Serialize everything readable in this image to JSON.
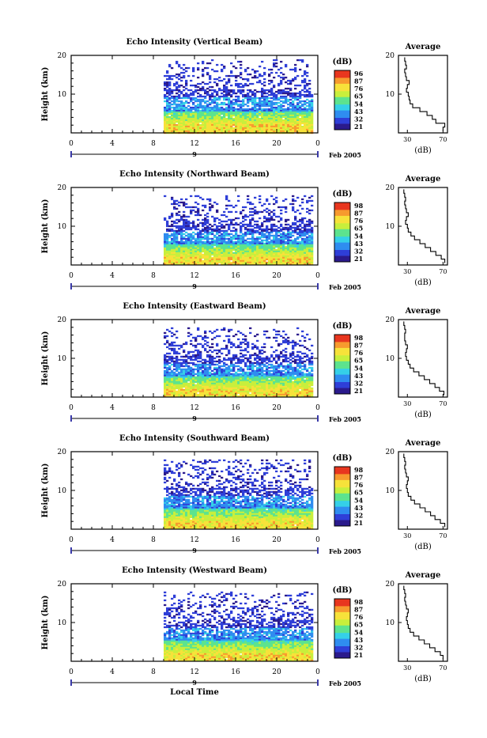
{
  "chart_data": [
    {
      "type": "heatmap",
      "title": "Echo Intensity (Vertical Beam)",
      "ylabel": "Height (km)",
      "ylim": [
        0,
        20
      ],
      "yticks": [
        "20",
        "10"
      ],
      "xlim": [
        0,
        24
      ],
      "xticks": [
        "0",
        "4",
        "8",
        "12",
        "16",
        "20",
        "0"
      ],
      "date_label": "9",
      "date_suffix": "Feb 2005",
      "data_start_hour": 9,
      "data_top_km": 19,
      "colorbar": {
        "label": "(dB)",
        "ticks": [
          "96",
          "87",
          "76",
          "65",
          "54",
          "43",
          "32",
          "21"
        ]
      },
      "average_profile": {
        "title": "Average",
        "xlabel": "(dB)",
        "xticks": [
          "30",
          "70"
        ],
        "heights_km": [
          1,
          2,
          3,
          4,
          5,
          6,
          7,
          8,
          9,
          10,
          11,
          12,
          13,
          14,
          15,
          16,
          17,
          18,
          19
        ],
        "values_db": [
          70,
          72,
          62,
          58,
          52,
          44,
          36,
          33,
          32,
          31,
          29,
          30,
          32,
          29,
          28,
          27,
          29,
          28,
          27
        ]
      }
    },
    {
      "type": "heatmap",
      "title": "Echo Intensity (Northward Beam)",
      "ylabel": "Height (km)",
      "ylim": [
        0,
        20
      ],
      "yticks": [
        "20",
        "10"
      ],
      "xlim": [
        0,
        24
      ],
      "xticks": [
        "0",
        "4",
        "8",
        "12",
        "16",
        "20",
        "0"
      ],
      "date_label": "9",
      "date_suffix": "Feb 2005",
      "data_start_hour": 9,
      "data_top_km": 18,
      "colorbar": {
        "label": "(dB)",
        "ticks": [
          "98",
          "87",
          "76",
          "65",
          "54",
          "43",
          "32",
          "21"
        ]
      },
      "average_profile": {
        "title": "Average",
        "xlabel": "(dB)",
        "xticks": [
          "30",
          "70"
        ],
        "heights_km": [
          1,
          2,
          3,
          4,
          5,
          6,
          7,
          8,
          9,
          10,
          11,
          12,
          13,
          14,
          15,
          16,
          17,
          18,
          19
        ],
        "values_db": [
          72,
          68,
          62,
          56,
          50,
          44,
          38,
          34,
          31,
          30,
          28,
          29,
          31,
          29,
          28,
          27,
          28,
          27,
          26
        ]
      }
    },
    {
      "type": "heatmap",
      "title": "Echo Intensity (Eastward Beam)",
      "ylabel": "Height (km)",
      "ylim": [
        0,
        20
      ],
      "yticks": [
        "20",
        "10"
      ],
      "xlim": [
        0,
        24
      ],
      "xticks": [
        "0",
        "4",
        "8",
        "12",
        "16",
        "20",
        "0"
      ],
      "date_label": "9",
      "date_suffix": "Feb 2005",
      "data_start_hour": 9,
      "data_top_km": 18,
      "colorbar": {
        "label": "(dB)",
        "ticks": [
          "98",
          "87",
          "76",
          "65",
          "54",
          "43",
          "32",
          "21"
        ]
      },
      "average_profile": {
        "title": "Average",
        "xlabel": "(dB)",
        "xticks": [
          "30",
          "70"
        ],
        "heights_km": [
          1,
          2,
          3,
          4,
          5,
          6,
          7,
          8,
          9,
          10,
          11,
          12,
          13,
          14,
          15,
          16,
          17,
          18,
          19
        ],
        "values_db": [
          71,
          66,
          61,
          55,
          49,
          43,
          37,
          33,
          31,
          29,
          28,
          29,
          30,
          28,
          27,
          27,
          28,
          27,
          26
        ]
      }
    },
    {
      "type": "heatmap",
      "title": "Echo Intensity (Southward Beam)",
      "ylabel": "Height (km)",
      "ylim": [
        0,
        20
      ],
      "yticks": [
        "20",
        "10"
      ],
      "xlim": [
        0,
        24
      ],
      "xticks": [
        "0",
        "4",
        "8",
        "12",
        "16",
        "20",
        "0"
      ],
      "date_label": "9",
      "date_suffix": "Feb 2005",
      "data_start_hour": 9,
      "data_top_km": 18,
      "colorbar": {
        "label": "(dB)",
        "ticks": [
          "98",
          "87",
          "76",
          "65",
          "54",
          "43",
          "32",
          "21"
        ]
      },
      "average_profile": {
        "title": "Average",
        "xlabel": "(dB)",
        "xticks": [
          "30",
          "70"
        ],
        "heights_km": [
          1,
          2,
          3,
          4,
          5,
          6,
          7,
          8,
          9,
          10,
          11,
          12,
          13,
          14,
          15,
          16,
          17,
          18,
          19
        ],
        "values_db": [
          72,
          67,
          61,
          56,
          50,
          44,
          38,
          34,
          31,
          30,
          29,
          30,
          31,
          29,
          28,
          27,
          28,
          27,
          26
        ]
      }
    },
    {
      "type": "heatmap",
      "title": "Echo Intensity (Westward Beam)",
      "ylabel": "Height (km)",
      "ylim": [
        0,
        20
      ],
      "yticks": [
        "20",
        "10"
      ],
      "xlim": [
        0,
        24
      ],
      "xticks": [
        "0",
        "4",
        "8",
        "12",
        "16",
        "20",
        "0"
      ],
      "date_label": "9",
      "date_suffix": "Feb 2005",
      "data_start_hour": 9,
      "data_top_km": 18,
      "colorbar": {
        "label": "(dB)",
        "ticks": [
          "98",
          "87",
          "76",
          "65",
          "54",
          "43",
          "32",
          "21"
        ]
      },
      "average_profile": {
        "title": "Average",
        "xlabel": "(dB)",
        "xticks": [
          "30",
          "70"
        ],
        "heights_km": [
          1,
          2,
          3,
          4,
          5,
          6,
          7,
          8,
          9,
          10,
          11,
          12,
          13,
          14,
          15,
          16,
          17,
          18,
          19
        ],
        "values_db": [
          70,
          67,
          61,
          55,
          49,
          43,
          37,
          33,
          31,
          30,
          29,
          30,
          31,
          29,
          28,
          27,
          28,
          27,
          26
        ]
      }
    }
  ],
  "xlabel": "Local Time",
  "colormap": [
    "#2b1a8c",
    "#2f3fd8",
    "#2f8df0",
    "#35d0e8",
    "#5de38e",
    "#c8ef3c",
    "#f7e23a",
    "#f79a2e",
    "#e8361f"
  ]
}
